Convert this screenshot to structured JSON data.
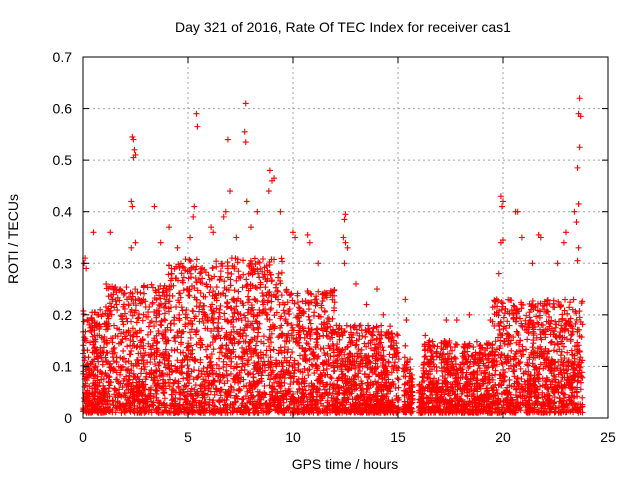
{
  "chart_data": {
    "type": "scatter",
    "title": "Day 321 of 2016, Rate Of TEC Index for receiver cas1",
    "xlabel": "GPS time / hours",
    "ylabel": "ROTI / TECUs",
    "xlim": [
      0,
      25
    ],
    "ylim": [
      0,
      0.7
    ],
    "grid": true,
    "marker": "+",
    "colors": {
      "series": "#ff0000",
      "axis": "#000000",
      "grid": "#a0a0a0"
    },
    "x_ticks": [
      "0",
      "5",
      "10",
      "15",
      "20",
      "25"
    ],
    "y_ticks": [
      "0",
      "0.1",
      "0.2",
      "0.3",
      "0.4",
      "0.5",
      "0.6",
      "0.7"
    ],
    "x_tick_values": [
      0,
      5,
      10,
      15,
      20,
      25
    ],
    "y_tick_values": [
      0,
      0.1,
      0.2,
      0.3,
      0.4,
      0.5,
      0.6,
      0.7
    ],
    "series": [
      {
        "name": "ROTI",
        "points": [
          [
            0.05,
            0.3
          ],
          [
            0.1,
            0.31
          ],
          [
            0.15,
            0.29
          ],
          [
            0.5,
            0.36
          ],
          [
            1.3,
            0.36
          ],
          [
            1.6,
            0.22
          ],
          [
            2.35,
            0.545
          ],
          [
            2.4,
            0.54
          ],
          [
            2.45,
            0.52
          ],
          [
            2.5,
            0.51
          ],
          [
            2.4,
            0.505
          ],
          [
            2.3,
            0.42
          ],
          [
            2.35,
            0.41
          ],
          [
            2.5,
            0.34
          ],
          [
            2.3,
            0.33
          ],
          [
            3.4,
            0.41
          ],
          [
            3.7,
            0.34
          ],
          [
            4.1,
            0.37
          ],
          [
            4.5,
            0.33
          ],
          [
            5.4,
            0.59
          ],
          [
            5.45,
            0.565
          ],
          [
            5.3,
            0.41
          ],
          [
            5.25,
            0.39
          ],
          [
            5.1,
            0.35
          ],
          [
            6.1,
            0.37
          ],
          [
            6.2,
            0.36
          ],
          [
            6.7,
            0.39
          ],
          [
            6.8,
            0.4
          ],
          [
            6.9,
            0.54
          ],
          [
            7.0,
            0.44
          ],
          [
            7.3,
            0.35
          ],
          [
            7.75,
            0.61
          ],
          [
            7.7,
            0.555
          ],
          [
            7.75,
            0.535
          ],
          [
            7.8,
            0.42
          ],
          [
            8.0,
            0.37
          ],
          [
            8.3,
            0.4
          ],
          [
            8.9,
            0.48
          ],
          [
            9.0,
            0.46
          ],
          [
            9.1,
            0.465
          ],
          [
            8.85,
            0.44
          ],
          [
            9.4,
            0.4
          ],
          [
            10.0,
            0.36
          ],
          [
            10.1,
            0.35
          ],
          [
            10.7,
            0.355
          ],
          [
            10.8,
            0.34
          ],
          [
            11.2,
            0.3
          ],
          [
            12.5,
            0.395
          ],
          [
            12.45,
            0.385
          ],
          [
            12.4,
            0.35
          ],
          [
            12.5,
            0.34
          ],
          [
            12.6,
            0.33
          ],
          [
            12.45,
            0.3
          ],
          [
            13.0,
            0.26
          ],
          [
            13.5,
            0.22
          ],
          [
            14.0,
            0.25
          ],
          [
            14.3,
            0.2
          ],
          [
            15.35,
            0.23
          ],
          [
            15.4,
            0.19
          ],
          [
            15.35,
            0.14
          ],
          [
            15.45,
            0.11
          ],
          [
            16.3,
            0.16
          ],
          [
            16.5,
            0.15
          ],
          [
            17.3,
            0.19
          ],
          [
            17.8,
            0.19
          ],
          [
            18.4,
            0.2
          ],
          [
            19.4,
            0.19
          ],
          [
            19.7,
            0.23
          ],
          [
            19.8,
            0.28
          ],
          [
            19.9,
            0.43
          ],
          [
            20.0,
            0.42
          ],
          [
            19.95,
            0.41
          ],
          [
            20.0,
            0.345
          ],
          [
            19.9,
            0.34
          ],
          [
            20.6,
            0.4
          ],
          [
            20.7,
            0.4
          ],
          [
            20.9,
            0.35
          ],
          [
            21.4,
            0.3
          ],
          [
            21.7,
            0.355
          ],
          [
            21.8,
            0.35
          ],
          [
            22.6,
            0.3
          ],
          [
            22.9,
            0.34
          ],
          [
            23.0,
            0.36
          ],
          [
            23.4,
            0.4
          ],
          [
            23.5,
            0.38
          ],
          [
            23.65,
            0.62
          ],
          [
            23.6,
            0.59
          ],
          [
            23.7,
            0.585
          ],
          [
            23.65,
            0.525
          ],
          [
            23.55,
            0.485
          ],
          [
            23.6,
            0.415
          ],
          [
            23.6,
            0.33
          ],
          [
            23.55,
            0.305
          ]
        ]
      }
    ]
  }
}
